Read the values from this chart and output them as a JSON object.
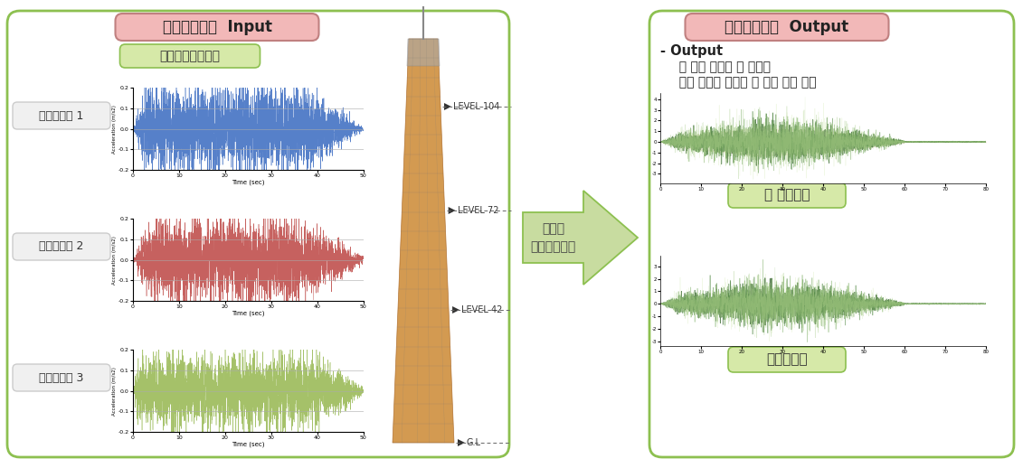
{
  "title_input": "시간이력해석  Input",
  "title_output": "시간이력해석  Output",
  "subtitle_seismic": "시간이력지진하중",
  "wave_labels": [
    "인공지진파 1",
    "인공지진파 2",
    "인공지진파 3"
  ],
  "wave_colors": [
    "#4472C4",
    "#C0504D",
    "#9BBB59"
  ],
  "ylabel": "Acceleration (m/s2)",
  "xlabel": "Time (sec)",
  "ylim": [
    -0.2,
    0.2
  ],
  "xlim": [
    0,
    50
  ],
  "arrow_label_line1": "비탄성",
  "arrow_label_line2": "시간이력해석",
  "output_text_line1": "- Output",
  "output_text_line2": "  각 층별 횡변위 및 가속도",
  "output_text_line3": "  주요 부재의 부재력 및 소성 힌지 분포",
  "label_displacement": "횡 변위응답",
  "label_acceleration": "가속도응답",
  "level_labels": [
    "LEVEL 104",
    "LEVEL 72",
    "LEVEL 42",
    "G.L"
  ],
  "outer_box_color": "#8DC050",
  "title_box_bg": "#F2B8B8",
  "title_box_edge": "#C08080",
  "green_box_bg": "#D6E9A8",
  "green_box_edge": "#8DC050",
  "label_box_bg": "#F0F0F0",
  "label_box_edge": "#CCCCCC",
  "arrow_fill": "#C8DCA0",
  "arrow_edge": "#8DC050",
  "bg_color": "#FFFFFF"
}
